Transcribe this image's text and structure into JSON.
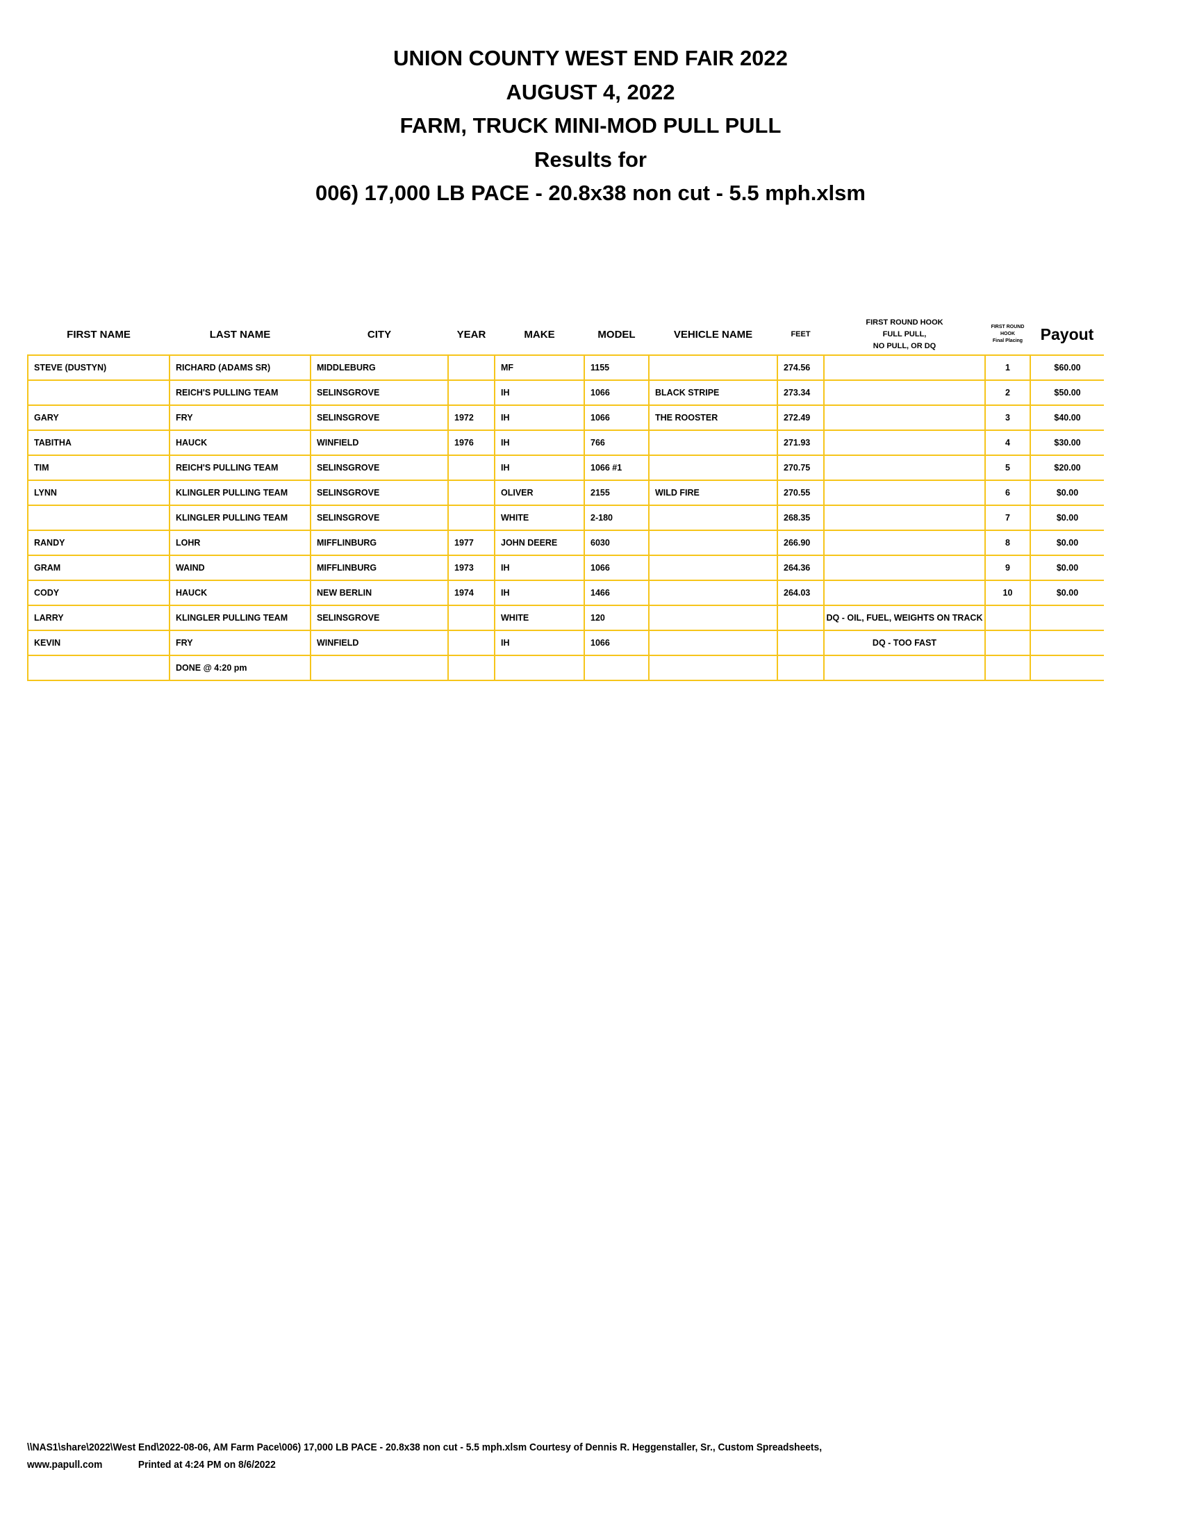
{
  "titles": [
    "UNION COUNTY WEST END FAIR 2022",
    "AUGUST 4, 2022",
    "FARM, TRUCK MINI-MOD PULL PULL",
    "Results for",
    "006) 17,000 LB PACE - 20.8x38 non cut - 5.5 mph.xlsm"
  ],
  "table": {
    "headers": {
      "first_name": "FIRST NAME",
      "last_name": "LAST NAME",
      "city": "CITY",
      "year": "YEAR",
      "make": "MAKE",
      "model": "MODEL",
      "vehicle_name": "VEHICLE NAME",
      "feet": "FEET",
      "hook_1": "FIRST ROUND HOOK",
      "hook_2": "FULL PULL,",
      "hook_3": "NO PULL, OR DQ",
      "placing_1": "FIRST ROUND",
      "placing_2": "HOOK",
      "placing_3": "Final Placing",
      "payout": "Payout"
    },
    "rows": [
      {
        "first": "STEVE (DUSTYN)",
        "last": "RICHARD (ADAMS SR)",
        "city": "MIDDLEBURG",
        "year": "",
        "make": "MF",
        "model": "1155",
        "vehicle": "",
        "feet": "274.56",
        "hook": "",
        "place": "1",
        "payout": "$60.00"
      },
      {
        "first": "",
        "last": "REICH'S PULLING TEAM",
        "city": "SELINSGROVE",
        "year": "",
        "make": "IH",
        "model": "1066",
        "vehicle": "BLACK STRIPE",
        "feet": "273.34",
        "hook": "",
        "place": "2",
        "payout": "$50.00"
      },
      {
        "first": "GARY",
        "last": "FRY",
        "city": "SELINSGROVE",
        "year": "1972",
        "make": "IH",
        "model": "1066",
        "vehicle": "THE ROOSTER",
        "feet": "272.49",
        "hook": "",
        "place": "3",
        "payout": "$40.00"
      },
      {
        "first": "TABITHA",
        "last": "HAUCK",
        "city": "WINFIELD",
        "year": "1976",
        "make": "IH",
        "model": "766",
        "vehicle": "",
        "feet": "271.93",
        "hook": "",
        "place": "4",
        "payout": "$30.00"
      },
      {
        "first": "TIM",
        "last": "REICH'S PULLING TEAM",
        "city": "SELINSGROVE",
        "year": "",
        "make": "IH",
        "model": "1066 #1",
        "vehicle": "",
        "feet": "270.75",
        "hook": "",
        "place": "5",
        "payout": "$20.00"
      },
      {
        "first": "LYNN",
        "last": "KLINGLER PULLING TEAM",
        "city": "SELINSGROVE",
        "year": "",
        "make": "OLIVER",
        "model": "2155",
        "vehicle": "WILD FIRE",
        "feet": "270.55",
        "hook": "",
        "place": "6",
        "payout": "$0.00"
      },
      {
        "first": "",
        "last": "KLINGLER PULLING TEAM",
        "city": "SELINSGROVE",
        "year": "",
        "make": "WHITE",
        "model": "2-180",
        "vehicle": "",
        "feet": "268.35",
        "hook": "",
        "place": "7",
        "payout": "$0.00"
      },
      {
        "first": "RANDY",
        "last": "LOHR",
        "city": "MIFFLINBURG",
        "year": "1977",
        "make": "JOHN DEERE",
        "model": "6030",
        "vehicle": "",
        "feet": "266.90",
        "hook": "",
        "place": "8",
        "payout": "$0.00"
      },
      {
        "first": "GRAM",
        "last": "WAIND",
        "city": "MIFFLINBURG",
        "year": "1973",
        "make": "IH",
        "model": "1066",
        "vehicle": "",
        "feet": "264.36",
        "hook": "",
        "place": "9",
        "payout": "$0.00"
      },
      {
        "first": "CODY",
        "last": "HAUCK",
        "city": "NEW BERLIN",
        "year": "1974",
        "make": "IH",
        "model": "1466",
        "vehicle": "",
        "feet": "264.03",
        "hook": "",
        "place": "10",
        "payout": "$0.00"
      },
      {
        "first": "LARRY",
        "last": "KLINGLER PULLING TEAM",
        "city": "SELINSGROVE",
        "year": "",
        "make": "WHITE",
        "model": "120",
        "vehicle": "",
        "feet": "",
        "hook": "DQ - OIL, FUEL, WEIGHTS ON TRACK",
        "place": "",
        "payout": ""
      },
      {
        "first": "KEVIN",
        "last": "FRY",
        "city": "WINFIELD",
        "year": "",
        "make": "IH",
        "model": "1066",
        "vehicle": "",
        "feet": "",
        "hook": "DQ - TOO FAST",
        "place": "",
        "payout": ""
      },
      {
        "first": "",
        "last": "DONE @ 4:20 pm",
        "city": "",
        "year": "",
        "make": "",
        "model": "",
        "vehicle": "",
        "feet": "",
        "hook": "",
        "place": "",
        "payout": ""
      }
    ]
  },
  "footer": {
    "line1": "\\\\NAS1\\share\\2022\\West End\\2022-08-06, AM Farm Pace\\006) 17,000 LB PACE - 20.8x38 non cut - 5.5 mph.xlsm  Courtesy of Dennis R. Heggenstaller, Sr., Custom Spreadsheets,",
    "website": "www.papull.com",
    "printed": "Printed at 4:24 PM on 8/6/2022"
  },
  "colors": {
    "grid": "#f6c51b"
  }
}
